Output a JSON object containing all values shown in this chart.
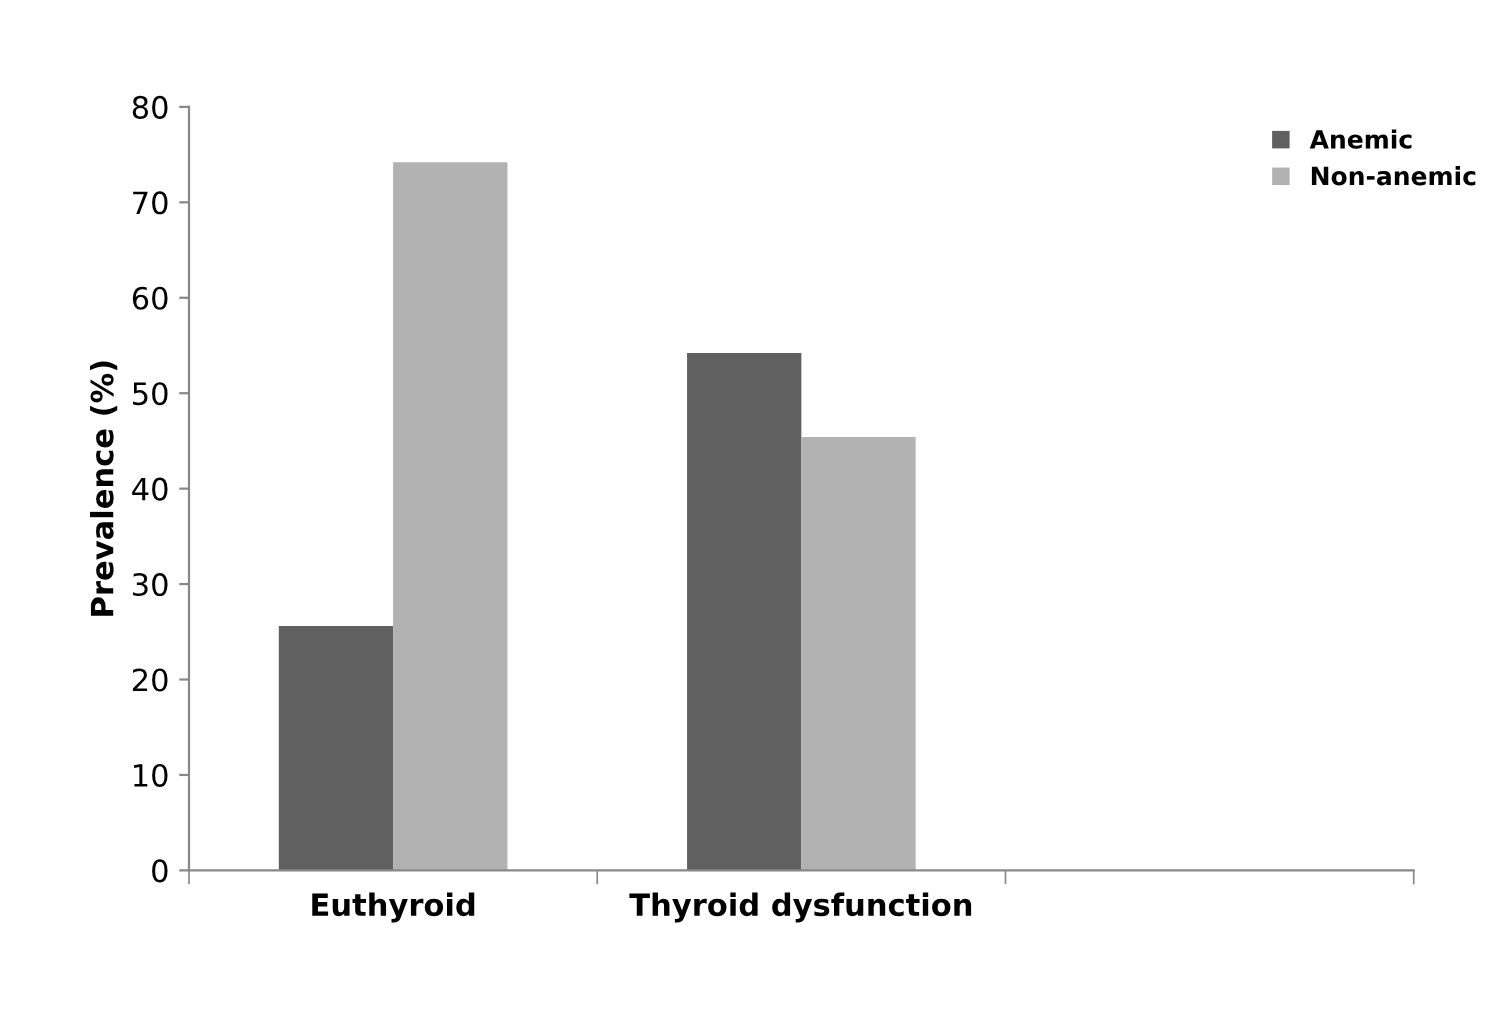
{
  "chart_data": {
    "type": "bar",
    "ylabel": "Prevalence (%)",
    "categories": [
      "Euthyroid",
      "Thyroid dysfunction",
      null
    ],
    "series": [
      {
        "name": "Anemic",
        "color": "#606060",
        "values": [
          25.6,
          54.2,
          null
        ]
      },
      {
        "name": "Non-anemic",
        "color": "#b2b2b2",
        "values": [
          74.2,
          45.4,
          null
        ]
      }
    ],
    "ylim": [
      0,
      80
    ],
    "yticks": [
      0,
      10,
      20,
      30,
      40,
      50,
      60,
      70,
      80
    ],
    "grid": false,
    "legend": "top right"
  }
}
